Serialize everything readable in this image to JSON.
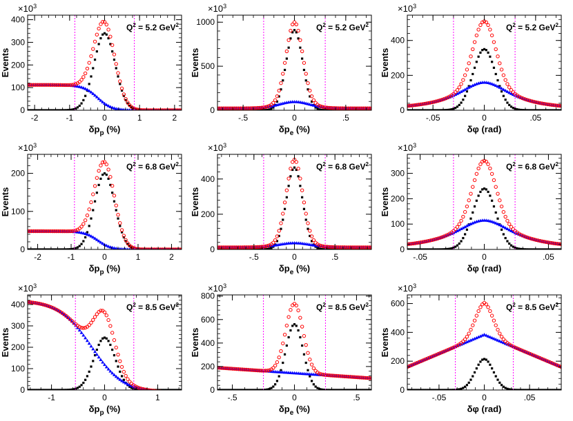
{
  "figure": {
    "colors": {
      "red": "#ff0000",
      "black": "#000000",
      "blue": "#0000ff",
      "magenta": "#ff00ff"
    },
    "y_axis_label": "Events",
    "exponent_label": "×10",
    "exponent_power": "3"
  },
  "chart_data": [
    {
      "type": "scatter",
      "row": 0,
      "col": 0,
      "q2_label": "Q² = 5.2 GeV²",
      "xlabel": "δp_p (%)",
      "ylabel": "Events",
      "y_multiplier": "×10³",
      "xlim": [
        -2.2,
        2.2
      ],
      "ylim": [
        0,
        420
      ],
      "xticks": [
        -2,
        -1,
        0,
        1,
        2
      ],
      "yticks": [
        0,
        100,
        200,
        300,
        400
      ],
      "cut_lines_x": [
        -0.85,
        0.85
      ],
      "mu": 0,
      "t_amp": 390,
      "s_amp": 340,
      "s_sig": 0.3,
      "bg": {
        "kind": "sigmoid",
        "a": 112,
        "b": 0,
        "x0": -0.2,
        "w": 0.2
      }
    },
    {
      "type": "scatter",
      "row": 0,
      "col": 1,
      "q2_label": "Q² = 5.2 GeV²",
      "xlabel": "δp_e (%)",
      "ylabel": "Events",
      "y_multiplier": "×10³",
      "xlim": [
        -0.75,
        0.75
      ],
      "ylim": [
        0,
        1080
      ],
      "xticks": [
        -0.5,
        0,
        0.5
      ],
      "yticks": [
        0,
        500,
        1000
      ],
      "cut_lines_x": [
        -0.3,
        0.3
      ],
      "mu": 0,
      "t_amp": 1000,
      "s_amp": 910,
      "s_sig": 0.08,
      "bg": {
        "kind": "peak",
        "base": 22,
        "amp": 75,
        "sig": 0.15
      }
    },
    {
      "type": "scatter",
      "row": 0,
      "col": 2,
      "q2_label": "Q² = 5.2 GeV²",
      "xlabel": "δφ (rad)",
      "ylabel": "Events",
      "y_multiplier": "×10³",
      "xlim": [
        -0.075,
        0.075
      ],
      "ylim": [
        0,
        545
      ],
      "xticks": [
        -0.05,
        0,
        0.05
      ],
      "yticks": [
        0,
        200,
        400
      ],
      "cut_lines_x": [
        -0.03,
        0.03
      ],
      "mu": 0,
      "t_amp": 510,
      "s_amp": 350,
      "s_sig": 0.011,
      "bg": {
        "kind": "lor",
        "base": 0,
        "amp": 160,
        "g": 0.032
      }
    },
    {
      "type": "scatter",
      "row": 1,
      "col": 0,
      "q2_label": "Q² = 6.8 GeV²",
      "xlabel": "δp_p (%)",
      "ylabel": "Events",
      "y_multiplier": "×10³",
      "xlim": [
        -2.3,
        2.3
      ],
      "ylim": [
        0,
        250
      ],
      "xticks": [
        -2,
        -1,
        0,
        1,
        2
      ],
      "yticks": [
        0,
        100,
        200
      ],
      "cut_lines_x": [
        -0.9,
        0.9
      ],
      "mu": 0,
      "t_amp": 230,
      "s_amp": 200,
      "s_sig": 0.3,
      "bg": {
        "kind": "sigmoid",
        "a": 48,
        "b": 0,
        "x0": -0.2,
        "w": 0.2
      }
    },
    {
      "type": "scatter",
      "row": 1,
      "col": 1,
      "q2_label": "Q² = 6.8 GeV²",
      "xlabel": "δp_e (%)",
      "ylabel": "Events",
      "y_multiplier": "×10³",
      "xlim": [
        -0.95,
        0.95
      ],
      "ylim": [
        0,
        540
      ],
      "xticks": [
        -0.5,
        0,
        0.5
      ],
      "yticks": [
        0,
        200,
        400
      ],
      "cut_lines_x": [
        -0.38,
        0.38
      ],
      "mu": 0,
      "t_amp": 510,
      "s_amp": 465,
      "s_sig": 0.1,
      "bg": {
        "kind": "peak",
        "base": 12,
        "amp": 25,
        "sig": 0.2
      }
    },
    {
      "type": "scatter",
      "row": 1,
      "col": 2,
      "q2_label": "Q² = 6.8 GeV²",
      "xlabel": "δφ (rad)",
      "ylabel": "Events",
      "y_multiplier": "×10³",
      "xlim": [
        -0.06,
        0.06
      ],
      "ylim": [
        0,
        375
      ],
      "xticks": [
        -0.05,
        0,
        0.05
      ],
      "yticks": [
        0,
        100,
        200,
        300
      ],
      "cut_lines_x": [
        -0.024,
        0.024
      ],
      "mu": 0,
      "t_amp": 350,
      "s_amp": 240,
      "s_sig": 0.009,
      "bg": {
        "kind": "lor",
        "base": 0,
        "amp": 115,
        "g": 0.028
      }
    },
    {
      "type": "scatter",
      "row": 2,
      "col": 0,
      "q2_label": "Q² = 8.5 GeV²",
      "xlabel": "δp_p (%)",
      "ylabel": "Events",
      "y_multiplier": "×10³",
      "xlim": [
        -1.45,
        1.45
      ],
      "ylim": [
        0,
        445
      ],
      "xticks": [
        -1,
        0,
        1
      ],
      "yticks": [
        0,
        100,
        200,
        300,
        400
      ],
      "cut_lines_x": [
        -0.55,
        0.55
      ],
      "mu": 0,
      "t_amp": null,
      "s_amp": 245,
      "s_sig": 0.2,
      "bg": {
        "kind": "sigmoid",
        "a": 420,
        "b": -12,
        "x0": -0.25,
        "w": 0.3
      }
    },
    {
      "type": "scatter",
      "row": 2,
      "col": 1,
      "q2_label": "Q² = 8.5 GeV²",
      "xlabel": "δp_e (%)",
      "ylabel": "Events",
      "y_multiplier": "×10³",
      "xlim": [
        -0.62,
        0.62
      ],
      "ylim": [
        0,
        810
      ],
      "xticks": [
        -0.5,
        0,
        0.5
      ],
      "yticks": [
        0,
        200,
        400,
        600,
        800
      ],
      "cut_lines_x": [
        -0.25,
        0.25
      ],
      "mu": 0,
      "t_amp": 735,
      "s_amp": 560,
      "s_sig": 0.07,
      "bg": {
        "kind": "linear_peak",
        "base": 190,
        "slope": -90,
        "amp": 0,
        "sig": 0.1
      }
    },
    {
      "type": "scatter",
      "row": 2,
      "col": 2,
      "q2_label": "Q² = 8.5 GeV²",
      "xlabel": "δφ (rad)",
      "ylabel": "Events",
      "y_multiplier": "×10³",
      "xlim": [
        -0.085,
        0.085
      ],
      "ylim": [
        0,
        660
      ],
      "xticks": [
        -0.05,
        0,
        0.05
      ],
      "yticks": [
        0,
        200,
        400,
        600
      ],
      "cut_lines_x": [
        -0.032,
        0.032
      ],
      "mu": 0,
      "t_amp": 605,
      "s_amp": 215,
      "s_sig": 0.01,
      "bg": {
        "kind": "tent",
        "top": 385,
        "edge": 160
      }
    }
  ]
}
